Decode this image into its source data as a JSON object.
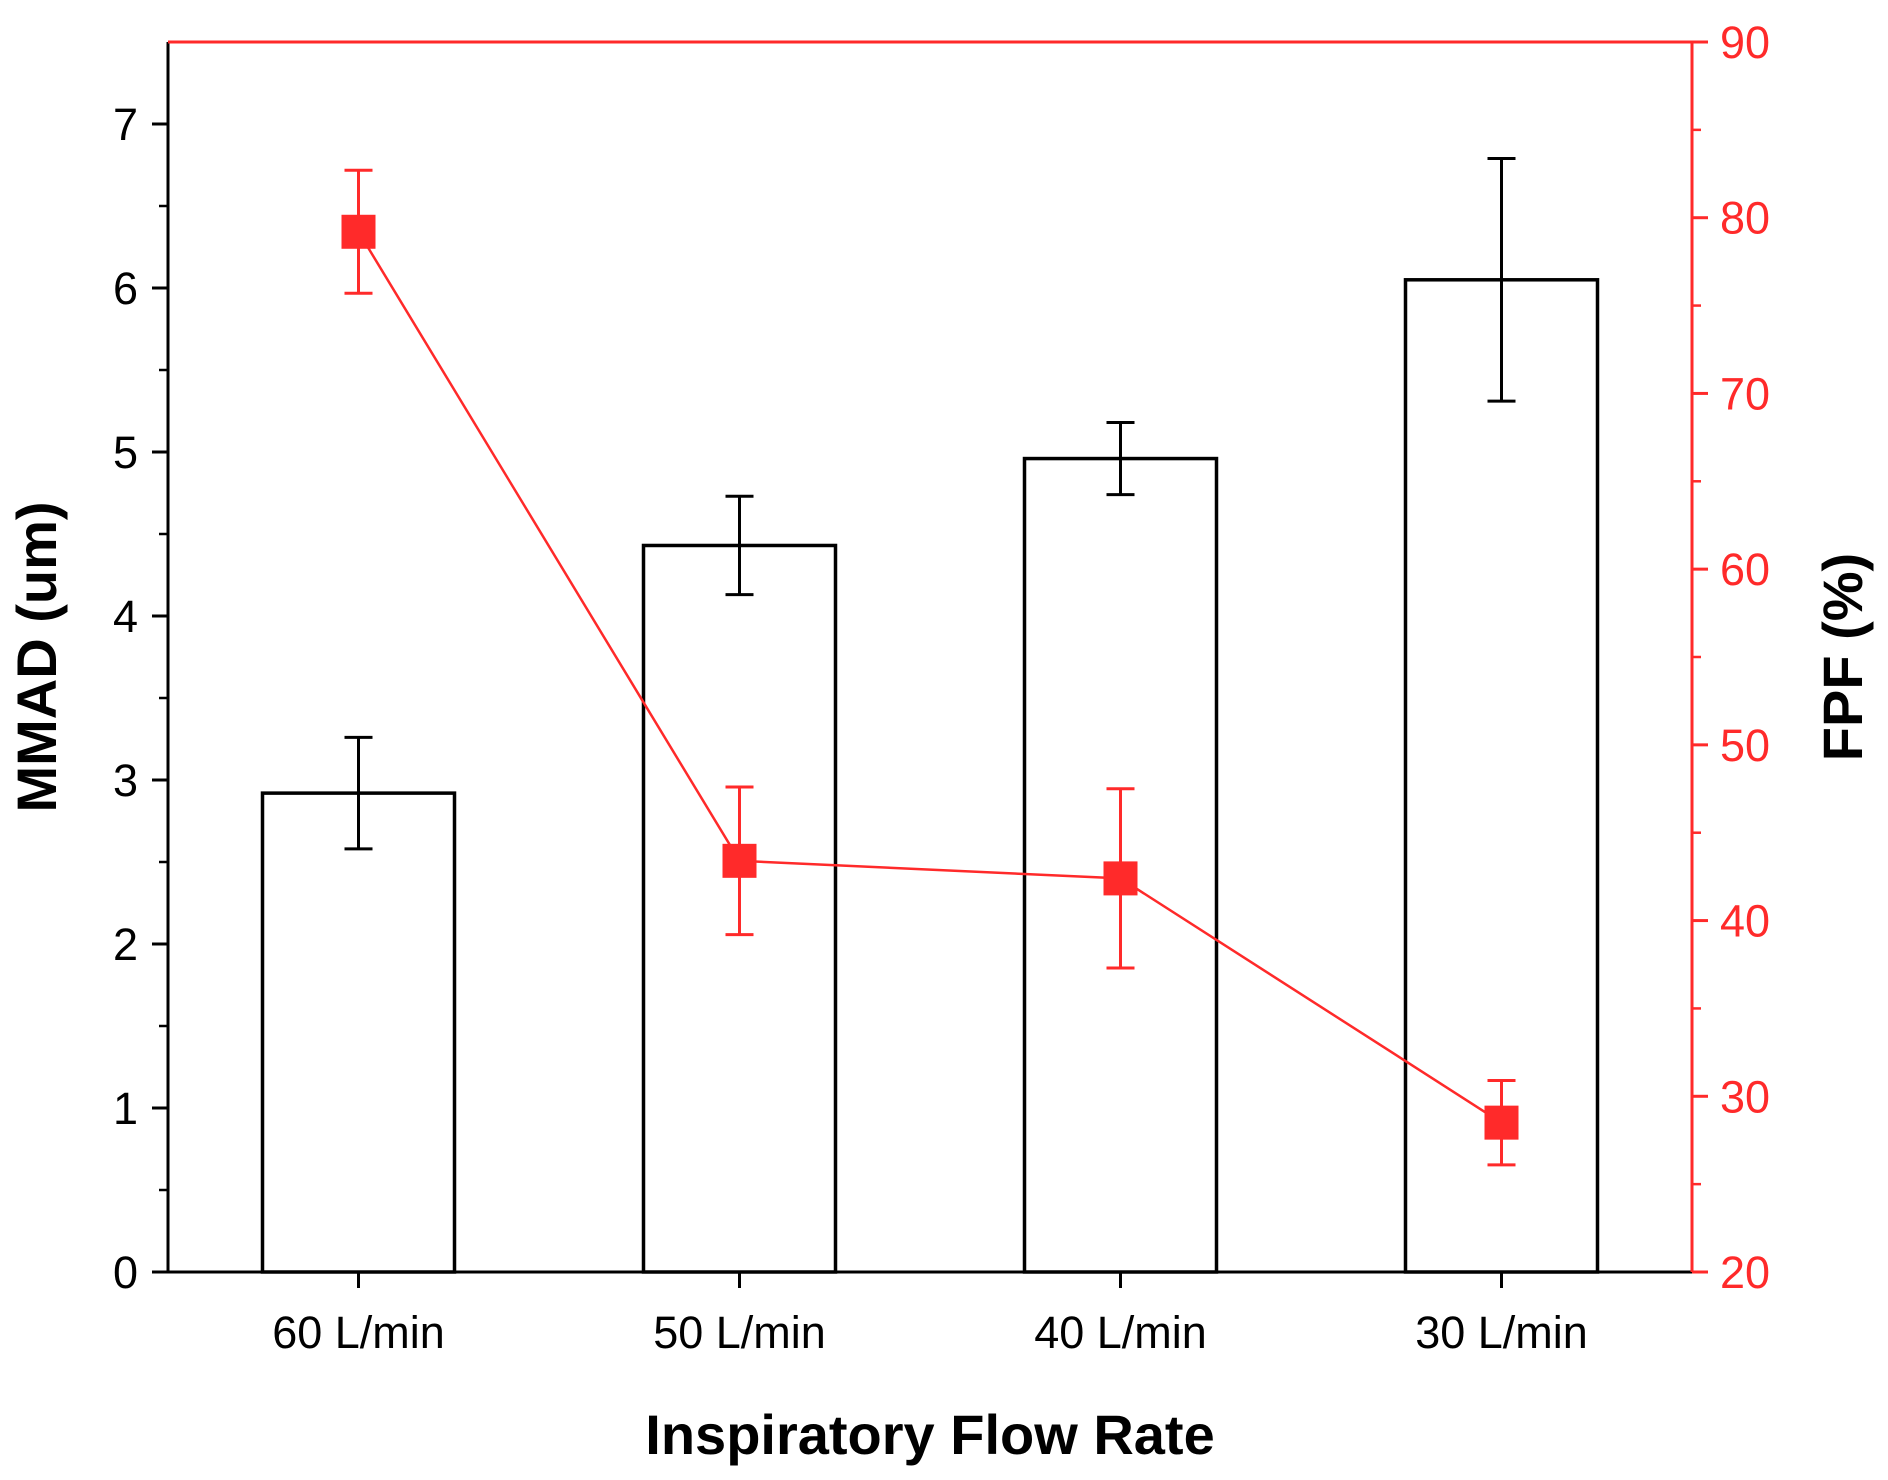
{
  "chart_data": {
    "type": "bar",
    "title": "",
    "categories": [
      "60 L/min",
      "50 L/min",
      "40 L/min",
      "30 L/min"
    ],
    "xlabel": "Inspiratory Flow Rate",
    "ylabel": "MMAD (um)",
    "ylim": [
      0,
      7.5
    ],
    "yticks": [
      "0",
      "1",
      "2",
      "3",
      "4",
      "5",
      "6",
      "7"
    ],
    "y2label": "FPF (%)",
    "y2lim": [
      20,
      90
    ],
    "y2ticks": [
      "20",
      "30",
      "40",
      "50",
      "60",
      "70",
      "80",
      "90"
    ],
    "grid": false,
    "series": [
      {
        "name": "MMAD (um)",
        "type": "bar",
        "axis": "left",
        "color": "#000000",
        "fill": "#ffffff",
        "values": [
          2.92,
          4.43,
          4.96,
          6.05
        ],
        "errors": [
          0.34,
          0.3,
          0.22,
          0.74
        ]
      },
      {
        "name": "FPF (%)",
        "type": "line",
        "axis": "right",
        "marker": "square",
        "color": "#ff2a2a",
        "values": [
          79.2,
          43.4,
          42.4,
          28.5
        ],
        "errors": [
          3.5,
          4.2,
          5.1,
          2.4
        ]
      }
    ]
  }
}
